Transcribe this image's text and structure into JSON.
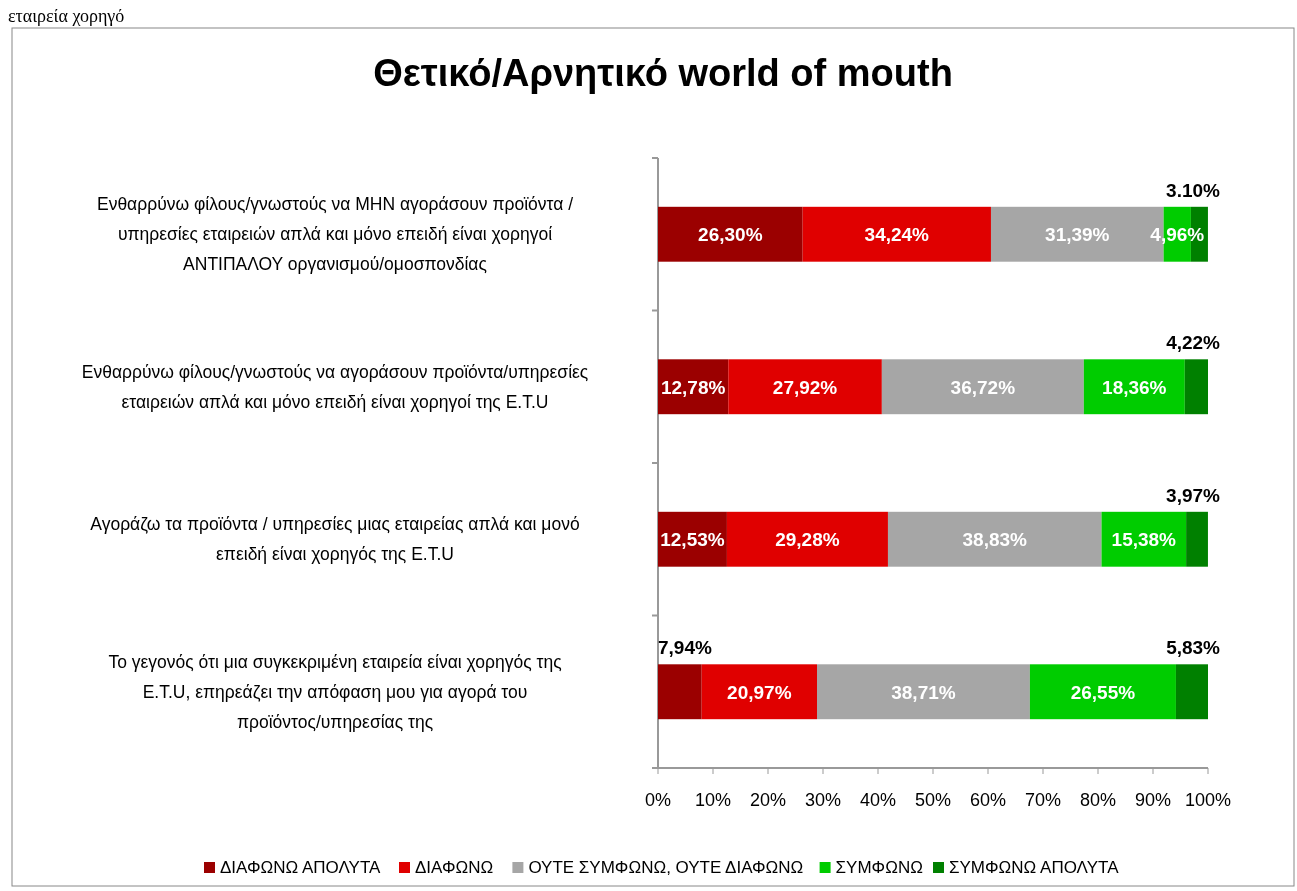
{
  "chart_data": {
    "type": "bar",
    "orientation": "horizontal",
    "stacked": true,
    "title": "Θετικό/Αρνητικό world of mouth",
    "annotations": [
      "εταιρεία χορηγό"
    ],
    "categories": [
      "Ενθαρρύνω φίλους/γνωστούς να ΜΗΝ αγοράσουν προϊόντα / υπηρεσίες εταιρειών απλά και μόνο επειδή είναι χορηγοί ΑΝΤΙΠΑΛΟΥ οργανισμού/ομοσπονδίας",
      "Ενθαρρύνω φίλους/γνωστούς να αγοράσουν προϊόντα/υπηρεσίες εταιρειών απλά και μόνο επειδή είναι χορηγοί της Ε.Τ.U",
      "Αγοράζω τα προϊόντα / υπηρεσίες μιας εταιρείας απλά και μονό επειδή είναι χορηγός της Ε.Τ.U",
      "Το γεγονός ότι μια συγκεκριμένη εταιρεία είναι χορηγός της Ε.Τ.U, επηρεάζει την απόφαση μου για αγορά του προϊόντος/υπηρεσίας της"
    ],
    "series": [
      {
        "name": "ΔΙΑΦΩΝΩ ΑΠΟΛΥΤΑ",
        "color": "#9b0000",
        "values": [
          26.3,
          12.78,
          12.53,
          7.94
        ],
        "value_labels": [
          "26,30%",
          "12,78%",
          "12,53%",
          "7,94%"
        ]
      },
      {
        "name": "ΔΙΑΦΩΝΩ",
        "color": "#e00000",
        "values": [
          34.24,
          27.92,
          29.28,
          20.97
        ],
        "value_labels": [
          "34,24%",
          "27,92%",
          "29,28%",
          "20,97%"
        ]
      },
      {
        "name": "ΟΥΤΕ ΣΥΜΦΩΝΩ, ΟΥΤΕ ΔΙΑΦΩΝΩ",
        "color": "#a6a6a6",
        "values": [
          31.39,
          36.72,
          38.83,
          38.71
        ],
        "value_labels": [
          "31,39%",
          "36,72%",
          "38,83%",
          "38,71%"
        ]
      },
      {
        "name": "ΣΥΜΦΩΝΩ",
        "color": "#00cc00",
        "values": [
          4.96,
          18.36,
          15.38,
          26.55
        ],
        "value_labels": [
          "4,96%",
          "18,36%",
          "15,38%",
          "26,55%"
        ]
      },
      {
        "name": "ΣΥΜΦΩΝΩ ΑΠΟΛΥΤΑ",
        "color": "#008000",
        "values": [
          3.1,
          4.22,
          3.97,
          5.83
        ],
        "value_labels": [
          "3.10%",
          "4,22%",
          "3,97%",
          "5,83%"
        ]
      }
    ],
    "xlim": [
      0,
      100
    ],
    "xticks": [
      {
        "value": 0,
        "label": "0%"
      },
      {
        "value": 10,
        "label": "10%"
      },
      {
        "value": 20,
        "label": "20%"
      },
      {
        "value": 30,
        "label": "30%"
      },
      {
        "value": 40,
        "label": "40%"
      },
      {
        "value": 50,
        "label": "50%"
      },
      {
        "value": 60,
        "label": "60%"
      },
      {
        "value": 70,
        "label": "70%"
      },
      {
        "value": 80,
        "label": "80%"
      },
      {
        "value": 90,
        "label": "90%"
      },
      {
        "value": 100,
        "label": "100%"
      }
    ],
    "grid": false,
    "legend": "bottom"
  }
}
